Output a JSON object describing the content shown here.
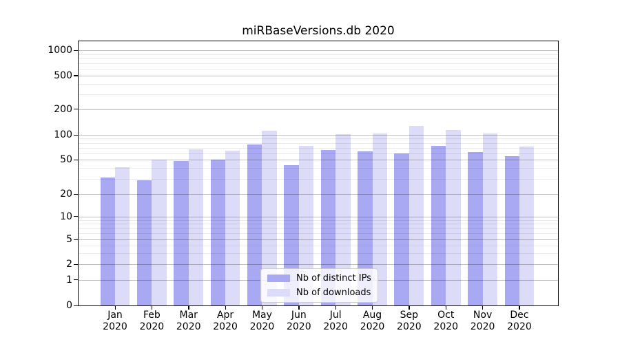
{
  "chart_data": {
    "type": "bar",
    "title": "miRBaseVersions.db 2020",
    "categories": [
      "Jan",
      "Feb",
      "Mar",
      "Apr",
      "May",
      "Jun",
      "Jul",
      "Aug",
      "Sep",
      "Oct",
      "Nov",
      "Dec"
    ],
    "x_tick_year": "2020",
    "series": [
      {
        "name": "Nb of distinct IPs",
        "color": "#a8a8f3",
        "values": [
          31,
          29,
          48,
          50,
          76,
          43,
          66,
          63,
          59,
          74,
          62,
          55
        ]
      },
      {
        "name": "Nb of downloads",
        "color": "#dcdcf9",
        "values": [
          41,
          50,
          67,
          64,
          112,
          74,
          101,
          103,
          128,
          114,
          103,
          72
        ]
      }
    ],
    "y_ticks": [
      0,
      1,
      2,
      5,
      10,
      20,
      50,
      100,
      200,
      500,
      1000
    ],
    "y_scale": "symlog",
    "ylim": [
      0,
      1000
    ],
    "grid": true,
    "legend_position": "lower-center-inside"
  },
  "colors": {
    "background": "#ffffff",
    "axis": "#000000",
    "grid_major": "#c3c3c3",
    "grid_minor": "#ebebeb",
    "text": "#000000",
    "legend_border": "#cccccc"
  }
}
